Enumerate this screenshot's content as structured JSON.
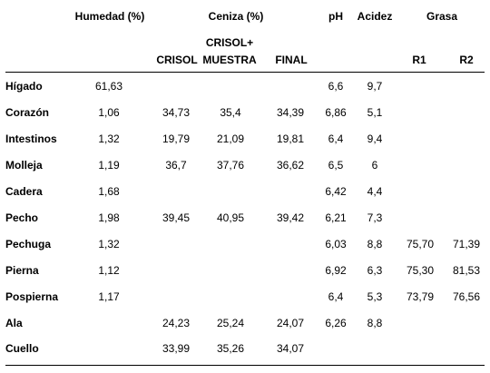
{
  "table": {
    "group_headers": {
      "humedad": "Humedad (%)",
      "ceniza": "Ceniza (%)",
      "ph": "pH",
      "acidez": "Acidez",
      "grasa": "Grasa"
    },
    "sub_headers": {
      "crisol": "CRISOL",
      "crisol_muestra_line1": "CRISOL+",
      "crisol_muestra_line2": "MUESTRA",
      "final": "FINAL",
      "r1": "R1",
      "r2": "R2"
    },
    "rows": [
      {
        "label": "Hígado",
        "humedad": "61,63",
        "crisol": "",
        "crisol_muestra": "",
        "final": "",
        "ph": "6,6",
        "acidez": "9,7",
        "r1": "",
        "r2": ""
      },
      {
        "label": "Corazón",
        "humedad": "1,06",
        "crisol": "34,73",
        "crisol_muestra": "35,4",
        "final": "34,39",
        "ph": "6,86",
        "acidez": "5,1",
        "r1": "",
        "r2": ""
      },
      {
        "label": "Intestinos",
        "humedad": "1,32",
        "crisol": "19,79",
        "crisol_muestra": "21,09",
        "final": "19,81",
        "ph": "6,4",
        "acidez": "9,4",
        "r1": "",
        "r2": ""
      },
      {
        "label": "Molleja",
        "humedad": "1,19",
        "crisol": "36,7",
        "crisol_muestra": "37,76",
        "final": "36,62",
        "ph": "6,5",
        "acidez": "6",
        "r1": "",
        "r2": ""
      },
      {
        "label": "Cadera",
        "humedad": "1,68",
        "crisol": "",
        "crisol_muestra": "",
        "final": "",
        "ph": "6,42",
        "acidez": "4,4",
        "r1": "",
        "r2": ""
      },
      {
        "label": "Pecho",
        "humedad": "1,98",
        "crisol": "39,45",
        "crisol_muestra": "40,95",
        "final": "39,42",
        "ph": "6,21",
        "acidez": "7,3",
        "r1": "",
        "r2": ""
      },
      {
        "label": "Pechuga",
        "humedad": "1,32",
        "crisol": "",
        "crisol_muestra": "",
        "final": "",
        "ph": "6,03",
        "acidez": "8,8",
        "r1": "75,70",
        "r2": "71,39"
      },
      {
        "label": "Pierna",
        "humedad": "1,12",
        "crisol": "",
        "crisol_muestra": "",
        "final": "",
        "ph": "6,92",
        "acidez": "6,3",
        "r1": "75,30",
        "r2": "81,53"
      },
      {
        "label": "Pospierna",
        "humedad": "1,17",
        "crisol": "",
        "crisol_muestra": "",
        "final": "",
        "ph": "6,4",
        "acidez": "5,3",
        "r1": "73,79",
        "r2": "76,56"
      },
      {
        "label": "Ala",
        "humedad": "",
        "crisol": "24,23",
        "crisol_muestra": "25,24",
        "final": "24,07",
        "ph": "6,26",
        "acidez": "8,8",
        "r1": "",
        "r2": ""
      },
      {
        "label": "Cuello",
        "humedad": "",
        "crisol": "33,99",
        "crisol_muestra": "35,26",
        "final": "34,07",
        "ph": "",
        "acidez": "",
        "r1": "",
        "r2": ""
      }
    ]
  }
}
